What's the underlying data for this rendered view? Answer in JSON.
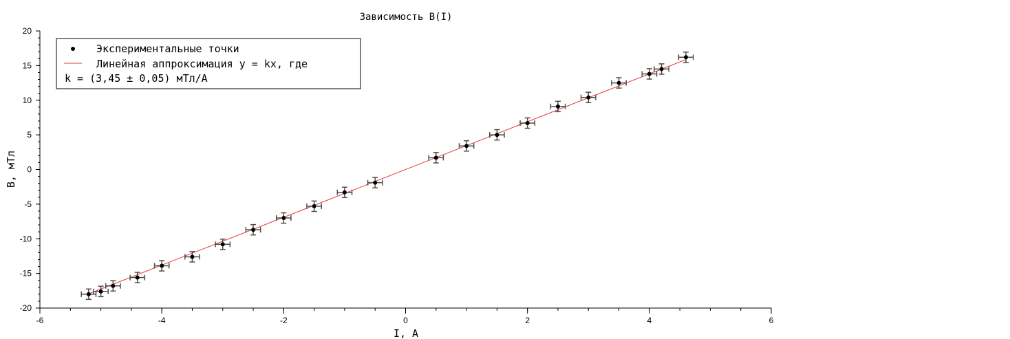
{
  "chart_data": {
    "type": "scatter",
    "title": "Зависимость B(I)",
    "xlabel": "I, A",
    "ylabel": "B, мТл",
    "xlim": [
      -6,
      6
    ],
    "ylim": [
      -20,
      20
    ],
    "xticks": [
      -6,
      -4,
      -2,
      0,
      2,
      4,
      6
    ],
    "yticks": [
      -20,
      -15,
      -10,
      -5,
      0,
      5,
      10,
      15,
      20
    ],
    "x_minor_step": 0.5,
    "y_minor_step": 1,
    "grid": false,
    "legend_position": "top-left",
    "legend": {
      "points_label": "Экспериментальные точки",
      "fit_label_line1": "Линейная аппроксимация y = kx, где",
      "fit_label_line2": "k = (3,45 ± 0,05) мТл/А"
    },
    "series": [
      {
        "kind": "points",
        "color": "#000000",
        "x": [
          -5.2,
          -5.0,
          -4.8,
          -4.4,
          -4.0,
          -3.5,
          -3.0,
          -2.5,
          -2.0,
          -1.5,
          -1.0,
          -0.5,
          0.5,
          1.0,
          1.5,
          2.0,
          2.5,
          3.0,
          3.5,
          4.0,
          4.2,
          4.6
        ],
        "y": [
          -18.0,
          -17.6,
          -16.8,
          -15.6,
          -13.9,
          -12.6,
          -10.8,
          -8.7,
          -7.0,
          -5.3,
          -3.3,
          -1.9,
          1.7,
          3.4,
          5.0,
          6.7,
          9.1,
          10.4,
          12.5,
          13.8,
          14.5,
          16.2
        ],
        "x_error": 0.12,
        "y_error": 0.75,
        "error_color": "#4d4d4d"
      },
      {
        "kind": "line",
        "color": "#e8383b",
        "slope": 3.45,
        "x": [
          -5.2,
          4.6
        ]
      }
    ]
  }
}
